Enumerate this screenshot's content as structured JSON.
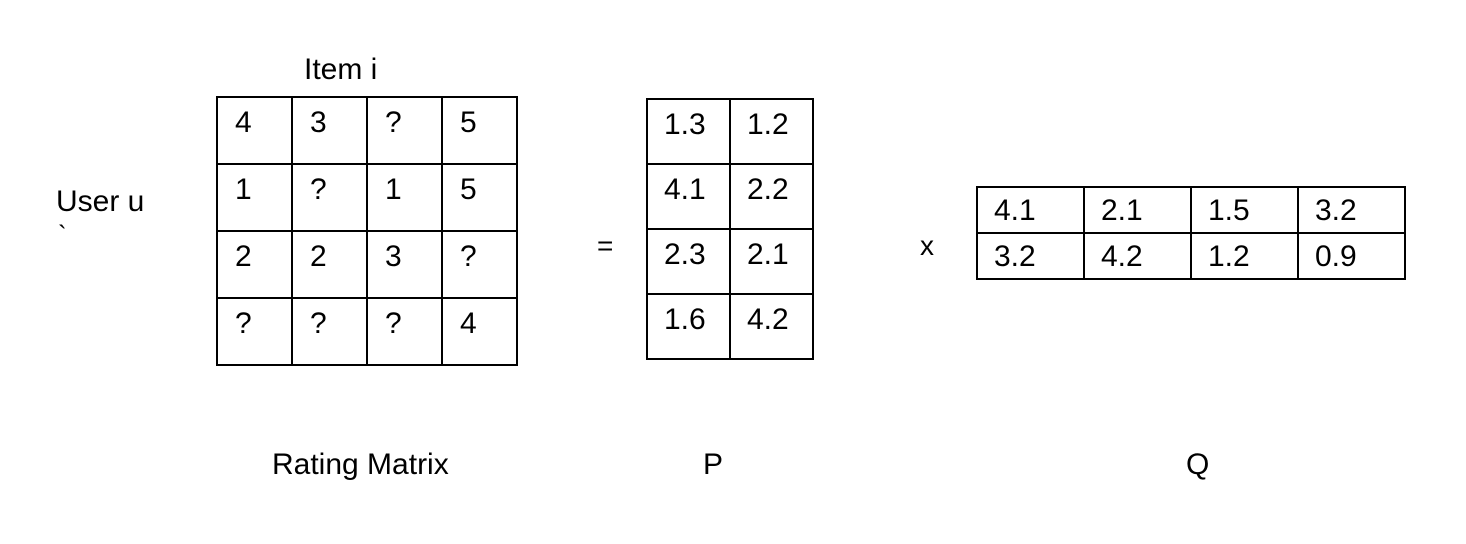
{
  "labels": {
    "item": "Item i",
    "user": "User u",
    "backtick": "`",
    "rating_matrix": "Rating Matrix",
    "p": "P",
    "q": "Q"
  },
  "operators": {
    "equals": "=",
    "times": "x"
  },
  "rating_matrix": [
    [
      "4",
      "3",
      "?",
      "5"
    ],
    [
      "1",
      "?",
      "1",
      "5"
    ],
    [
      "2",
      "2",
      "3",
      "?"
    ],
    [
      "?",
      "?",
      "?",
      "4"
    ]
  ],
  "p_matrix": [
    [
      "1.3",
      "1.2"
    ],
    [
      "4.1",
      "2.2"
    ],
    [
      "2.3",
      "2.1"
    ],
    [
      "1.6",
      "4.2"
    ]
  ],
  "q_matrix": [
    [
      "4.1",
      "2.1",
      "1.5",
      "3.2"
    ],
    [
      "3.2",
      "4.2",
      "1.2",
      "0.9"
    ]
  ]
}
